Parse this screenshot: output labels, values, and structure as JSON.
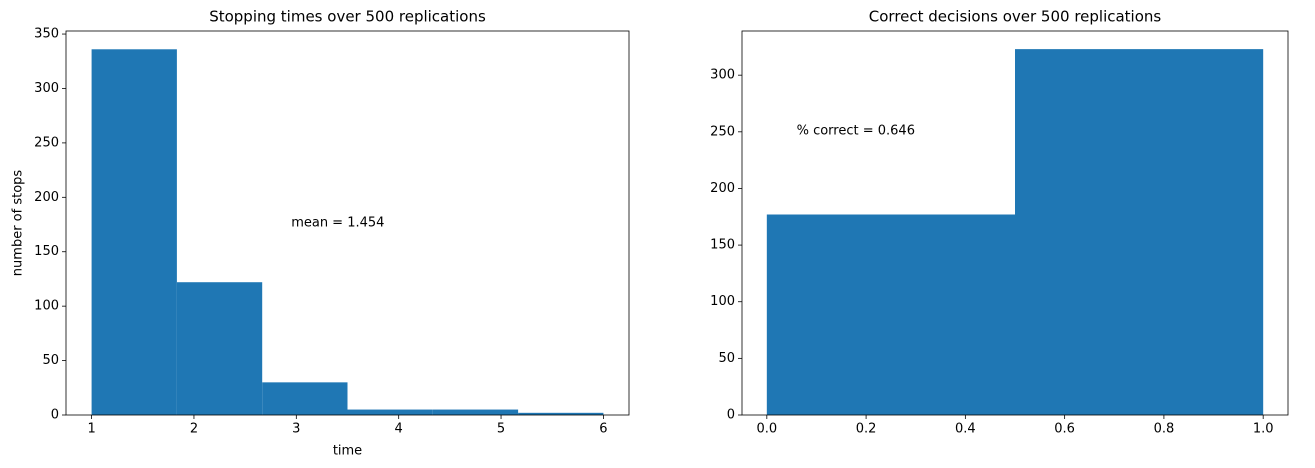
{
  "chart_data": [
    {
      "type": "histogram",
      "title": "Stopping times over 500 replications",
      "x_label": "time",
      "y_label": "number of stops",
      "bins": [
        1,
        1.8333,
        2.6667,
        3.5,
        4.3333,
        5.1667,
        6
      ],
      "values": [
        336,
        122,
        30,
        5,
        5,
        2
      ],
      "color": "#1f77b4",
      "annotation": "mean = 1.454",
      "xlim": [
        0.75,
        6.25
      ],
      "ylim": [
        0,
        352.8
      ],
      "xticks": [
        1,
        2,
        3,
        4,
        5,
        6
      ],
      "yticks": [
        0,
        50,
        100,
        150,
        200,
        250,
        300,
        350
      ]
    },
    {
      "type": "histogram",
      "title": "Correct decisions over 500 replications",
      "bins": [
        0,
        0.5,
        1
      ],
      "values": [
        177,
        323
      ],
      "color": "#1f77b4",
      "annotation": "% correct = 0.646",
      "xlim": [
        -0.05,
        1.05
      ],
      "ylim": [
        0,
        339
      ],
      "xticks": [
        {
          "value": 0,
          "label": "0.0"
        },
        {
          "value": 0.2,
          "label": "0.2"
        },
        {
          "value": 0.4,
          "label": "0.4"
        },
        {
          "value": 0.6,
          "label": "0.6"
        },
        {
          "value": 0.8,
          "label": "0.8"
        },
        {
          "value": 1,
          "label": "1.0"
        }
      ],
      "yticks": [
        0,
        50,
        100,
        150,
        200,
        250,
        300
      ]
    }
  ]
}
